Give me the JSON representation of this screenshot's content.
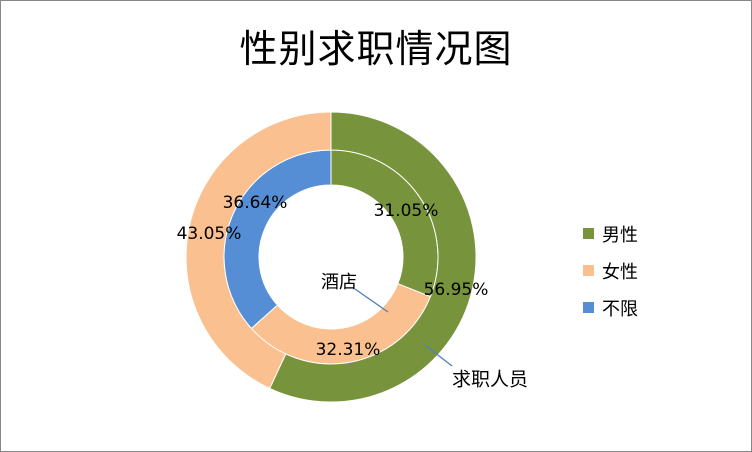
{
  "chart_data": {
    "type": "doughnut",
    "title": "性别求职情况图",
    "categories": [
      "男性",
      "女性",
      "不限"
    ],
    "colors": [
      "#77933C",
      "#FAC090",
      "#558ED5"
    ],
    "series": [
      {
        "name": "酒店",
        "ring": "inner",
        "values": [
          31.05,
          32.31,
          36.64
        ],
        "labels": [
          "31.05%",
          "32.31%",
          "36.64%"
        ]
      },
      {
        "name": "求职人员",
        "ring": "outer",
        "values": [
          56.95,
          43.05,
          0
        ],
        "labels": [
          "56.95%",
          "43.05%",
          ""
        ]
      }
    ],
    "legend_position": "right"
  }
}
